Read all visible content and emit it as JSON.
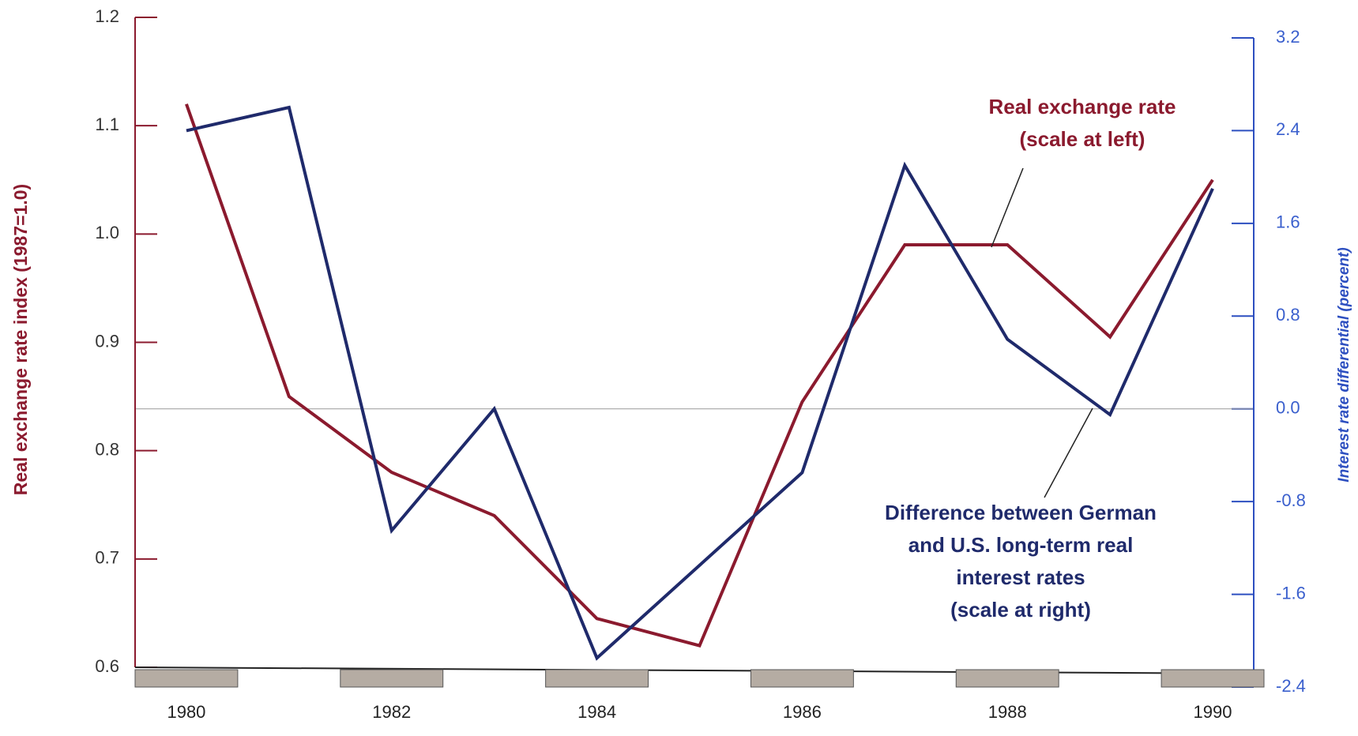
{
  "chart_data": {
    "type": "line",
    "x": [
      1980,
      1981,
      1982,
      1983,
      1984,
      1985,
      1986,
      1987,
      1988,
      1989,
      1990
    ],
    "xlim": [
      1979.5,
      1990.4
    ],
    "xticks": [
      1980,
      1982,
      1984,
      1986,
      1988,
      1990
    ],
    "ylabel": "Real exchange rate index (1987=1.0)",
    "y2label": "Interest rate differential (percent)",
    "ylim": [
      0.6,
      1.2
    ],
    "yticks": [
      {
        "value": 0.6,
        "label": "0.6"
      },
      {
        "value": 0.7,
        "label": "0.7"
      },
      {
        "value": 0.8,
        "label": "0.8"
      },
      {
        "value": 0.9,
        "label": "0.9"
      },
      {
        "value": 1.0,
        "label": "1.0"
      },
      {
        "value": 1.1,
        "label": "1.1"
      },
      {
        "value": 1.2,
        "label": "1.2"
      }
    ],
    "y2lim": [
      -2.4,
      3.2
    ],
    "y2ticks": [
      {
        "value": -2.4,
        "label": "-2.4"
      },
      {
        "value": -1.6,
        "label": "-1.6"
      },
      {
        "value": -0.8,
        "label": "-0.8"
      },
      {
        "value": 0,
        "label": "0.0"
      },
      {
        "value": 0.8,
        "label": "0.8"
      },
      {
        "value": 1.6,
        "label": "1.6"
      },
      {
        "value": 2.4,
        "label": "2.4"
      },
      {
        "value": 3.2,
        "label": "3.2"
      }
    ],
    "series": [
      {
        "name": "Real exchange rate",
        "color": "#8b1a2e",
        "values": [
          1.12,
          0.85,
          0.78,
          0.74,
          0.645,
          0.62,
          0.845,
          0.99,
          0.99,
          0.905,
          1.05
        ]
      },
      {
        "name": "Difference between German and U.S. long-term real interest rates",
        "color": "#1f2a6b",
        "axis": "y2",
        "values": [
          2.4,
          2.6,
          -1.05,
          0.0,
          -2.15,
          -1.35,
          -0.55,
          2.1,
          0.6,
          -0.05,
          1.9
        ]
      }
    ],
    "annotations": [
      {
        "lines": [
          "Real exchange rate",
          "(scale at left)"
        ],
        "color": "#8b1a2e"
      },
      {
        "lines": [
          "Difference between German",
          "and U.S. long-term real",
          "interest rates",
          "(scale at right)"
        ],
        "color": "#1f2a6b"
      }
    ]
  }
}
